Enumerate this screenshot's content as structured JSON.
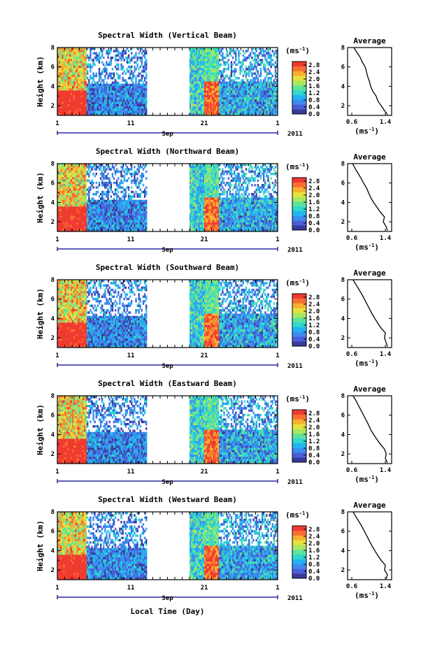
{
  "figure": {
    "xlabel": "Local Time (Day)",
    "month_label": "Sep",
    "year_label": "2011",
    "ylabel": "Height (km)",
    "colorbar_unit": "(ms",
    "colorbar_unit_sup": "-1",
    "colorbar_unit_close": ")",
    "avg_title": "Average",
    "avg_xlabel": "(ms",
    "avg_xlabel_sup": "-1",
    "avg_xlabel_close": ")"
  },
  "chart_data": [
    {
      "type": "heatmap",
      "title": "Spectral Width (Vertical Beam)",
      "x_ticks": [
        "1",
        "11",
        "21",
        "1"
      ],
      "y_ticks": [
        "2",
        "4",
        "6",
        "8"
      ],
      "ylim": [
        1,
        8
      ],
      "colorbar_ticks": [
        "0.0",
        "0.4",
        "0.8",
        "1.2",
        "1.6",
        "2.0",
        "2.4",
        "2.8"
      ],
      "colorbar_range": [
        0,
        3.0
      ],
      "average": {
        "title": "Average",
        "x_ticks": [
          "0.6",
          "1.4"
        ],
        "y_ticks": [
          "2",
          "4",
          "6",
          "8"
        ],
        "height": [
          1.1,
          1.5,
          2,
          2.5,
          3,
          3.5,
          4,
          4.5,
          5,
          5.5,
          6,
          6.5,
          7,
          7.5,
          8
        ],
        "width": [
          1.45,
          1.38,
          1.3,
          1.22,
          1.18,
          1.1,
          1.05,
          1.02,
          0.98,
          0.95,
          0.92,
          0.85,
          0.8,
          0.72,
          0.65
        ]
      }
    },
    {
      "type": "heatmap",
      "title": "Spectral Width (Northward Beam)",
      "x_ticks": [
        "1",
        "11",
        "21",
        "1"
      ],
      "y_ticks": [
        "2",
        "4",
        "6",
        "8"
      ],
      "ylim": [
        1,
        8
      ],
      "colorbar_ticks": [
        "0.0",
        "0.4",
        "0.8",
        "1.2",
        "1.6",
        "2.0",
        "2.4",
        "2.8"
      ],
      "colorbar_range": [
        0,
        3.0
      ],
      "average": {
        "title": "Average",
        "x_ticks": [
          "0.6",
          "1.4"
        ],
        "y_ticks": [
          "2",
          "4",
          "6",
          "8"
        ],
        "height": [
          1.1,
          1.5,
          2,
          2.5,
          3,
          3.5,
          4,
          4.5,
          5,
          5.5,
          6,
          6.5,
          7,
          7.5,
          8
        ],
        "width": [
          1.45,
          1.42,
          1.35,
          1.38,
          1.28,
          1.2,
          1.12,
          1.05,
          1.0,
          0.95,
          0.88,
          0.82,
          0.75,
          0.68,
          0.62
        ]
      }
    },
    {
      "type": "heatmap",
      "title": "Spectral Width (Southward Beam)",
      "x_ticks": [
        "1",
        "11",
        "21",
        "1"
      ],
      "y_ticks": [
        "2",
        "4",
        "6",
        "8"
      ],
      "ylim": [
        1,
        8
      ],
      "colorbar_ticks": [
        "0.0",
        "0.4",
        "0.8",
        "1.2",
        "1.6",
        "2.0",
        "2.4",
        "2.8"
      ],
      "colorbar_range": [
        0,
        3.0
      ],
      "average": {
        "title": "Average",
        "x_ticks": [
          "0.6",
          "1.4"
        ],
        "y_ticks": [
          "2",
          "4",
          "6",
          "8"
        ],
        "height": [
          1.1,
          1.5,
          2,
          2.5,
          3,
          3.5,
          4,
          4.5,
          5,
          5.5,
          6,
          6.5,
          7,
          7.5,
          8
        ],
        "width": [
          1.45,
          1.42,
          1.38,
          1.4,
          1.3,
          1.22,
          1.15,
          1.08,
          1.02,
          0.96,
          0.9,
          0.84,
          0.77,
          0.7,
          0.63
        ]
      }
    },
    {
      "type": "heatmap",
      "title": "Spectral Width (Eastward Beam)",
      "x_ticks": [
        "1",
        "11",
        "21",
        "1"
      ],
      "y_ticks": [
        "2",
        "4",
        "6",
        "8"
      ],
      "ylim": [
        1,
        8
      ],
      "colorbar_ticks": [
        "0.0",
        "0.4",
        "0.8",
        "1.2",
        "1.6",
        "2.0",
        "2.4",
        "2.8"
      ],
      "colorbar_range": [
        0,
        3.0
      ],
      "average": {
        "title": "Average",
        "x_ticks": [
          "0.6",
          "1.4"
        ],
        "y_ticks": [
          "2",
          "4",
          "6",
          "8"
        ],
        "height": [
          1.1,
          1.5,
          2,
          2.5,
          3,
          3.5,
          4,
          4.5,
          5,
          5.5,
          6,
          6.5,
          7,
          7.5,
          8
        ],
        "width": [
          1.45,
          1.4,
          1.42,
          1.38,
          1.28,
          1.2,
          1.12,
          1.05,
          1.0,
          0.94,
          0.88,
          0.82,
          0.76,
          0.7,
          0.63
        ]
      }
    },
    {
      "type": "heatmap",
      "title": "Spectral Width (Westward Beam)",
      "x_ticks": [
        "1",
        "11",
        "21",
        "1"
      ],
      "y_ticks": [
        "2",
        "4",
        "6",
        "8"
      ],
      "ylim": [
        1,
        8
      ],
      "colorbar_ticks": [
        "0.0",
        "0.4",
        "0.8",
        "1.2",
        "1.6",
        "2.0",
        "2.4",
        "2.8"
      ],
      "colorbar_range": [
        0,
        3.0
      ],
      "average": {
        "title": "Average",
        "x_ticks": [
          "0.6",
          "1.4"
        ],
        "y_ticks": [
          "2",
          "4",
          "6",
          "8"
        ],
        "height": [
          1.1,
          1.5,
          2,
          2.5,
          3,
          3.5,
          4,
          4.5,
          5,
          5.5,
          6,
          6.5,
          7,
          7.5,
          8
        ],
        "width": [
          1.42,
          1.45,
          1.38,
          1.4,
          1.3,
          1.22,
          1.15,
          1.08,
          1.02,
          0.96,
          0.9,
          0.84,
          0.77,
          0.7,
          0.63
        ]
      }
    }
  ]
}
